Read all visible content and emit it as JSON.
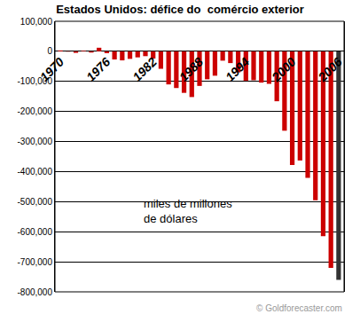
{
  "chart_data": {
    "type": "bar",
    "title": "Estados Unidos: défice do  comércio exterior",
    "categories": [
      "1970",
      null,
      null,
      null,
      null,
      null,
      "1976",
      null,
      null,
      null,
      null,
      null,
      "1982",
      null,
      null,
      null,
      null,
      null,
      "1988",
      null,
      null,
      null,
      null,
      null,
      "1994",
      null,
      null,
      null,
      null,
      null,
      "2000",
      null,
      null,
      null,
      null,
      null,
      "2006"
    ],
    "values": [
      3000,
      -1000,
      -5000,
      2000,
      -4000,
      12000,
      -6000,
      -27000,
      -30000,
      -25000,
      -20000,
      -16000,
      -24000,
      -58000,
      -110000,
      -122000,
      -138000,
      -152000,
      -115000,
      -93000,
      -81000,
      -31000,
      -39000,
      -70000,
      -98000,
      -96000,
      -104000,
      -108000,
      -166000,
      -264000,
      -378000,
      -363000,
      -421000,
      -495000,
      -615000,
      -720000,
      -760000
    ],
    "colors": [
      "#cc0000",
      "#cc0000",
      "#cc0000",
      "#cc0000",
      "#cc0000",
      "#cc0000",
      "#cc0000",
      "#cc0000",
      "#cc0000",
      "#cc0000",
      "#cc0000",
      "#cc0000",
      "#cc0000",
      "#cc0000",
      "#cc0000",
      "#cc0000",
      "#cc0000",
      "#cc0000",
      "#cc0000",
      "#cc0000",
      "#cc0000",
      "#cc0000",
      "#cc0000",
      "#cc0000",
      "#cc0000",
      "#cc0000",
      "#cc0000",
      "#cc0000",
      "#cc0000",
      "#cc0000",
      "#cc0000",
      "#cc0000",
      "#cc0000",
      "#cc0000",
      "#cc0000",
      "#cc0000",
      "#333333"
    ],
    "ylim": [
      -800000,
      100000
    ],
    "yticks": [
      {
        "value": 100000,
        "label": "100,000"
      },
      0,
      {
        "value": -100000,
        "label": "-100,000"
      },
      {
        "value": -200000,
        "label": "-200,000"
      },
      {
        "value": -300000,
        "label": "-300,000"
      },
      {
        "value": -400000,
        "label": "-400,000"
      },
      {
        "value": -500000,
        "label": "-500,000"
      },
      {
        "value": -600000,
        "label": "-600,000"
      },
      {
        "value": -700000,
        "label": "-700,000"
      },
      {
        "value": -800000,
        "label": "-800,000"
      }
    ],
    "grid": true,
    "annotations": [
      "miles de millones\nde dólares",
      "© Goldforecaster.com"
    ]
  }
}
